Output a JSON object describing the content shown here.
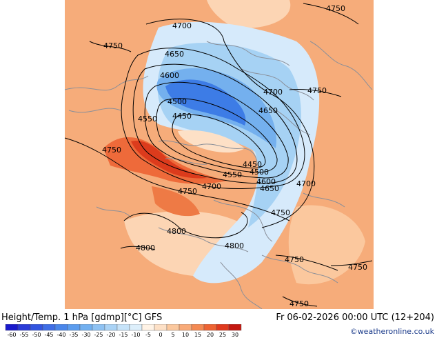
{
  "header": {
    "title": "Height/Temp. 1 hPa [gdmp][°C] GFS",
    "datetime": "Fr 06-02-2026 00:00 UTC (12+204)",
    "credit": "©weatheronline.co.uk"
  },
  "colors": {
    "bg_warm": "#f6ac7a",
    "warm_light": "#fcd5b4",
    "warm_mid": "#f59f6c",
    "warm_hot": "#ee6a3a",
    "warm_hotter": "#dc3b1c",
    "cold_pale": "#d6eafb",
    "cold_light": "#a6d2f4",
    "cold_mid": "#74b0ee",
    "cold_deep": "#3d7ce6",
    "coast": "#8a8f99",
    "contour": "#000000"
  },
  "contour_labels": [
    {
      "id": "l1",
      "text": "4750"
    },
    {
      "id": "l2",
      "text": "4700"
    },
    {
      "id": "l3",
      "text": "4750"
    },
    {
      "id": "l4",
      "text": "4650"
    },
    {
      "id": "l5",
      "text": "4600"
    },
    {
      "id": "l6",
      "text": "4700"
    },
    {
      "id": "l7",
      "text": "4750"
    },
    {
      "id": "l8",
      "text": "4500"
    },
    {
      "id": "l9",
      "text": "4650"
    },
    {
      "id": "l10",
      "text": "4550"
    },
    {
      "id": "l11",
      "text": "4450"
    },
    {
      "id": "l12",
      "text": "4750"
    },
    {
      "id": "l13",
      "text": "4450"
    },
    {
      "id": "l14",
      "text": "4500"
    },
    {
      "id": "l15",
      "text": "4550"
    },
    {
      "id": "l16",
      "text": "4600"
    },
    {
      "id": "l17",
      "text": "4650"
    },
    {
      "id": "l18",
      "text": "4700"
    },
    {
      "id": "l19",
      "text": "4700"
    },
    {
      "id": "l20",
      "text": "4750"
    },
    {
      "id": "l21",
      "text": "4750"
    },
    {
      "id": "l22",
      "text": "4800"
    },
    {
      "id": "l23",
      "text": "4800"
    },
    {
      "id": "l24",
      "text": "4800"
    },
    {
      "id": "l25",
      "text": "4750"
    },
    {
      "id": "l26",
      "text": "4750"
    },
    {
      "id": "l27",
      "text": "4750"
    }
  ],
  "legend": {
    "ticks": [
      "-60",
      "-55",
      "-50",
      "-45",
      "-40",
      "-35",
      "-30",
      "-25",
      "-20",
      "-15",
      "-10",
      "-5",
      "0",
      "5",
      "10",
      "15",
      "20",
      "25",
      "30"
    ],
    "colors": [
      "#1a1acc",
      "#2a3bd8",
      "#3355e0",
      "#3f6ee6",
      "#4a86ea",
      "#5b9cee",
      "#72b0f0",
      "#8ec2f3",
      "#aad3f6",
      "#c6e3f9",
      "#ddeffb",
      "#fff3e6",
      "#fde0c6",
      "#fbc89e",
      "#f8aa78",
      "#f48952",
      "#ee6332",
      "#e03a1e",
      "#c41810"
    ]
  }
}
